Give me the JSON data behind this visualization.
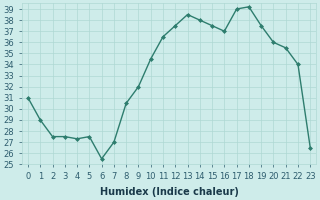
{
  "x": [
    0,
    1,
    2,
    3,
    4,
    5,
    6,
    7,
    8,
    9,
    10,
    11,
    12,
    13,
    14,
    15,
    16,
    17,
    18,
    19,
    20,
    21,
    22,
    23
  ],
  "y": [
    31,
    29,
    27.5,
    27.5,
    27.3,
    27.5,
    25.5,
    27,
    30.5,
    32,
    34.5,
    36.5,
    37.5,
    38.5,
    38,
    37.5,
    37,
    39,
    39.2,
    37.5,
    36,
    35.5,
    34,
    26.5
  ],
  "xlabel": "Humidex (Indice chaleur)",
  "ylim": [
    25,
    39.5
  ],
  "xlim": [
    -0.5,
    23.5
  ],
  "line_color": "#2e7d6e",
  "marker_color": "#2e7d6e",
  "bg_color": "#ceecea",
  "grid_color": "#afd8d4",
  "tick_label_color": "#2e5d6e",
  "xlabel_color": "#1a3a4a",
  "yticks": [
    25,
    26,
    27,
    28,
    29,
    30,
    31,
    32,
    33,
    34,
    35,
    36,
    37,
    38,
    39
  ],
  "xticks": [
    0,
    1,
    2,
    3,
    4,
    5,
    6,
    7,
    8,
    9,
    10,
    11,
    12,
    13,
    14,
    15,
    16,
    17,
    18,
    19,
    20,
    21,
    22,
    23
  ],
  "tick_fontsize": 6.0,
  "xlabel_fontsize": 7.0
}
